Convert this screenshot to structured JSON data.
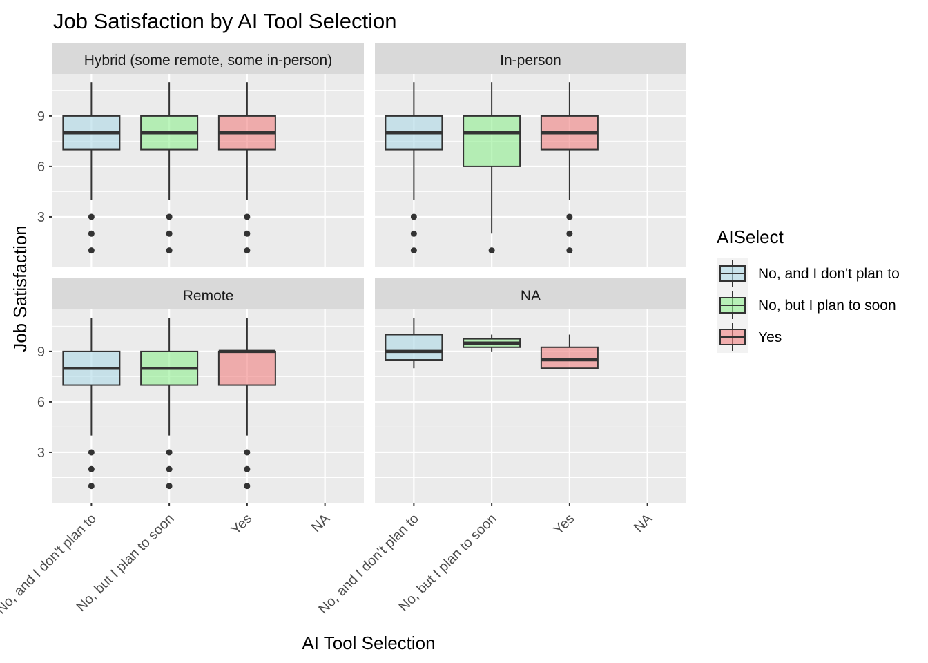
{
  "chart_data": {
    "type": "box",
    "title": "Job Satisfaction by AI Tool Selection",
    "xlabel": "AI Tool Selection",
    "ylabel": "Job Satisfaction",
    "ylim": [
      0,
      11.5
    ],
    "yticks": [
      3,
      6,
      9
    ],
    "categories": [
      "No, and I don't plan to",
      "No, but I plan to soon",
      "Yes",
      "NA"
    ],
    "legend": {
      "title": "AISelect",
      "position": "right",
      "entries": [
        {
          "label": "No, and I don't plan to",
          "color": "#add8e6"
        },
        {
          "label": "No, but I plan to soon",
          "color": "#90ee90"
        },
        {
          "label": "Yes",
          "color": "#f08080"
        }
      ]
    },
    "grid": true,
    "panels": [
      {
        "label": "Hybrid (some remote, some in-person)",
        "boxes": [
          {
            "category": "No, and I don't plan to",
            "min": 4,
            "q1": 7,
            "median": 8,
            "q3": 9,
            "max": 11,
            "outliers": [
              1,
              2,
              3
            ]
          },
          {
            "category": "No, but I plan to soon",
            "min": 4,
            "q1": 7,
            "median": 8,
            "q3": 9,
            "max": 11,
            "outliers": [
              1,
              2,
              3
            ]
          },
          {
            "category": "Yes",
            "min": 4,
            "q1": 7,
            "median": 8,
            "q3": 9,
            "max": 11,
            "outliers": [
              1,
              2,
              3
            ]
          }
        ]
      },
      {
        "label": "In-person",
        "boxes": [
          {
            "category": "No, and I don't plan to",
            "min": 4,
            "q1": 7,
            "median": 8,
            "q3": 9,
            "max": 11,
            "outliers": [
              1,
              2,
              3
            ]
          },
          {
            "category": "No, but I plan to soon",
            "min": 2,
            "q1": 6,
            "median": 8,
            "q3": 9,
            "max": 11,
            "outliers": [
              1
            ]
          },
          {
            "category": "Yes",
            "min": 4,
            "q1": 7,
            "median": 8,
            "q3": 9,
            "max": 11,
            "outliers": [
              1,
              2,
              3
            ]
          }
        ]
      },
      {
        "label": "Remote",
        "boxes": [
          {
            "category": "No, and I don't plan to",
            "min": 4,
            "q1": 7,
            "median": 8,
            "q3": 9,
            "max": 11,
            "outliers": [
              1,
              2,
              3
            ]
          },
          {
            "category": "No, but I plan to soon",
            "min": 4,
            "q1": 7,
            "median": 8,
            "q3": 9,
            "max": 11,
            "outliers": [
              1,
              2,
              3
            ]
          },
          {
            "category": "Yes",
            "min": 4,
            "q1": 7,
            "median": 9,
            "q3": 9,
            "max": 11,
            "outliers": [
              1,
              2,
              3
            ]
          }
        ]
      },
      {
        "label": "NA",
        "boxes": [
          {
            "category": "No, and I don't plan to",
            "min": 8,
            "q1": 8.5,
            "median": 9,
            "q3": 10,
            "max": 11,
            "outliers": []
          },
          {
            "category": "No, but I plan to soon",
            "min": 9,
            "q1": 9.25,
            "median": 9.5,
            "q3": 9.75,
            "max": 10,
            "outliers": []
          },
          {
            "category": "Yes",
            "min": 8,
            "q1": 8,
            "median": 8.5,
            "q3": 9.25,
            "max": 10,
            "outliers": []
          }
        ]
      }
    ]
  }
}
